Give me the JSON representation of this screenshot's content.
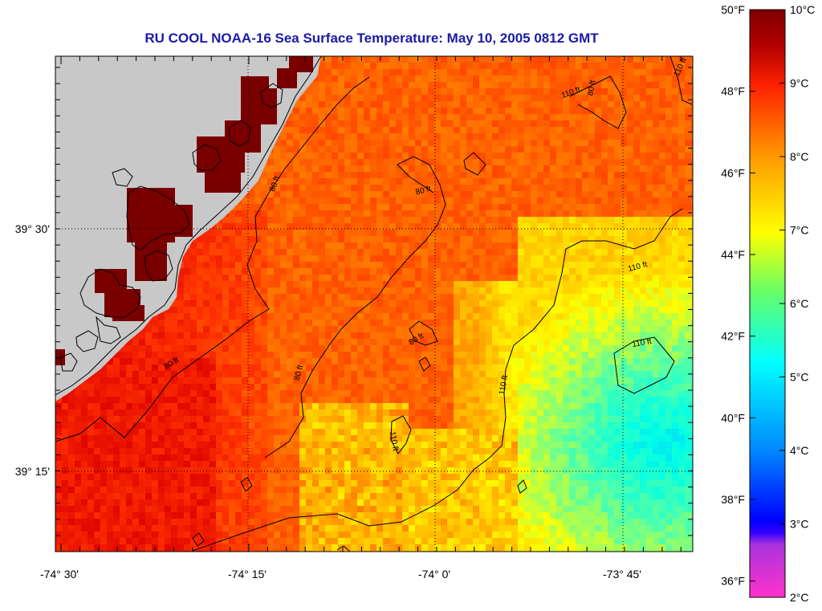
{
  "map": {
    "title": "RU COOL  NOAA-16  Sea Surface Temperature:  May 10, 2005 0812 GMT",
    "x_ticks": [
      "-74° 30'",
      "-74° 15'",
      "-74° 0'",
      "-73° 45'"
    ],
    "y_ticks": [
      "39° 30'",
      "39° 15'"
    ],
    "contour_labels": [
      "110 ft",
      "110 ft",
      "80 ft",
      "80 ft",
      "80 ft",
      "80 ft",
      "80 ft",
      "80 ft",
      "110 ft",
      "110 ft",
      "110 ft",
      "110 ft"
    ],
    "land_color": "#c8c8c8",
    "contour_color": "#000000"
  },
  "colorbar": {
    "celsius": [
      "10°C",
      "9°C",
      "8°C",
      "7°C",
      "6°C",
      "5°C",
      "4°C",
      "3°C",
      "2°C"
    ],
    "fahrenheit": [
      "50°F",
      "48°F",
      "46°F",
      "44°F",
      "42°F",
      "40°F",
      "38°F",
      "36°F"
    ],
    "range_celsius": [
      2,
      10
    ],
    "colors": [
      "#ff33cc",
      "#8a2be2",
      "#0000ff",
      "#0099ff",
      "#00ffff",
      "#33ff99",
      "#ffff00",
      "#ffa500",
      "#ff2a00",
      "#b30000",
      "#800000"
    ]
  }
}
